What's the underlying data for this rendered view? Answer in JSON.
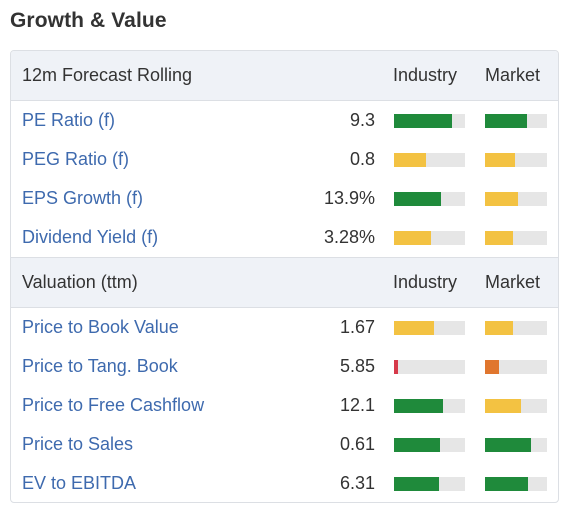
{
  "title": "Growth & Value",
  "colors": {
    "green": "#1f8a3b",
    "yellow": "#f3c242",
    "orange": "#e0762e",
    "red": "#d6394a",
    "track": "#e6e6e6",
    "link": "#3e6aae"
  },
  "sections": [
    {
      "header": "12m Forecast Rolling",
      "industry_label": "Industry",
      "market_label": "Market",
      "rows": [
        {
          "label": "PE Ratio (f)",
          "value": "9.3",
          "industry": {
            "level": 0.82,
            "color": "green"
          },
          "market": {
            "level": 0.68,
            "color": "green"
          }
        },
        {
          "label": "PEG Ratio (f)",
          "value": "0.8",
          "industry": {
            "level": 0.45,
            "color": "yellow"
          },
          "market": {
            "level": 0.49,
            "color": "yellow"
          }
        },
        {
          "label": "EPS Growth (f)",
          "value": "13.9%",
          "industry": {
            "level": 0.66,
            "color": "green"
          },
          "market": {
            "level": 0.53,
            "color": "yellow"
          }
        },
        {
          "label": "Dividend Yield (f)",
          "value": "3.28%",
          "industry": {
            "level": 0.52,
            "color": "yellow"
          },
          "market": {
            "level": 0.45,
            "color": "yellow"
          }
        }
      ]
    },
    {
      "header": "Valuation (ttm)",
      "industry_label": "Industry",
      "market_label": "Market",
      "rows": [
        {
          "label": "Price to Book Value",
          "value": "1.67",
          "industry": {
            "level": 0.56,
            "color": "yellow"
          },
          "market": {
            "level": 0.45,
            "color": "yellow"
          }
        },
        {
          "label": "Price to Tang. Book",
          "value": "5.85",
          "industry": {
            "level": 0.06,
            "color": "red"
          },
          "market": {
            "level": 0.23,
            "color": "orange"
          }
        },
        {
          "label": "Price to Free Cashflow",
          "value": "12.1",
          "industry": {
            "level": 0.69,
            "color": "green"
          },
          "market": {
            "level": 0.58,
            "color": "yellow"
          }
        },
        {
          "label": "Price to Sales",
          "value": "0.61",
          "industry": {
            "level": 0.65,
            "color": "green"
          },
          "market": {
            "level": 0.74,
            "color": "green"
          }
        },
        {
          "label": "EV to EBITDA",
          "value": "6.31",
          "industry": {
            "level": 0.63,
            "color": "green"
          },
          "market": {
            "level": 0.69,
            "color": "green"
          }
        }
      ]
    }
  ]
}
